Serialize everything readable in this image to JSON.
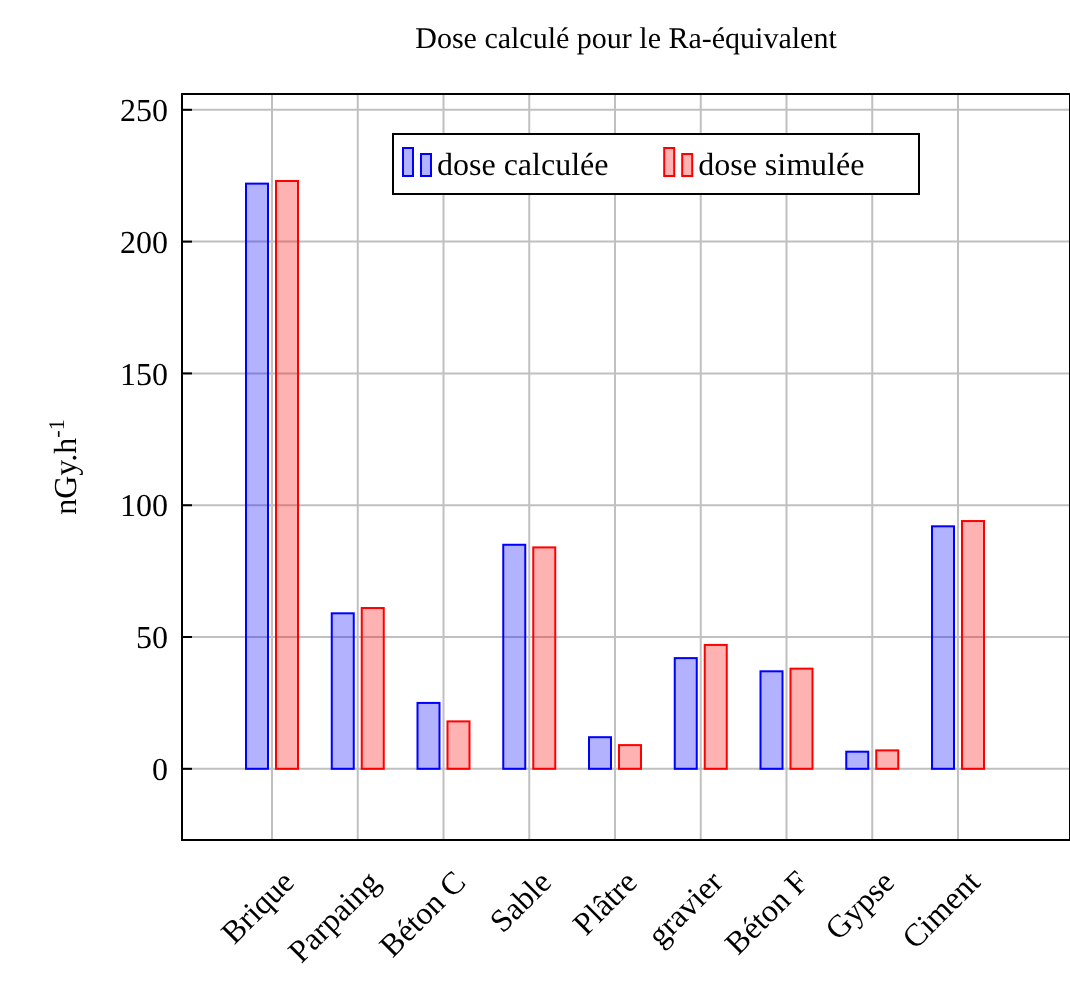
{
  "chart_data": {
    "type": "bar",
    "title": "Dose calculé pour le Ra-équivalent",
    "ylabel": "nGy.h$^{-1}$",
    "categories": [
      "Brique",
      "Parpaing",
      "Béton C",
      "Sable",
      "Plâtre",
      "gravier",
      "Béton F",
      "Gypse",
      "Ciment"
    ],
    "series": [
      {
        "name": "dose calculée",
        "color": "#0000ff",
        "values": [
          222,
          59,
          25,
          85,
          12,
          42,
          37,
          6.5,
          92
        ]
      },
      {
        "name": "dose simulée",
        "color": "#ff0000",
        "values": [
          223,
          61,
          18,
          84,
          9,
          47,
          38,
          7,
          94
        ]
      }
    ],
    "ylim": [
      -27,
      256
    ],
    "yticks": [
      0,
      50,
      100,
      150,
      200,
      250
    ],
    "grid": true,
    "legend": "top"
  }
}
